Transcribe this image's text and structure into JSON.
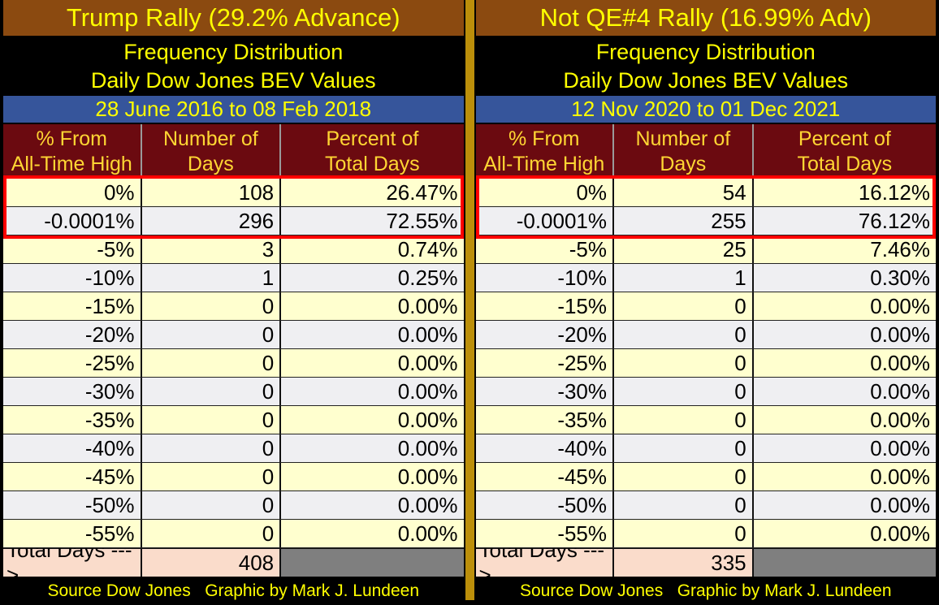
{
  "colors": {
    "title_bg": "#8B4A10",
    "band_bg": "#000000",
    "date_bg": "#36559B",
    "header_bg": "#6B0A10",
    "header_text": "#FFD633",
    "accent_yellow": "#FFFF00",
    "row_cream": "#FFFFCF",
    "row_gray": "#EFEFF2",
    "total_bg": "#FADCCB",
    "blank_cell": "#7F7F7F",
    "highlight_border": "#FF0000",
    "divider_gold": "#BC8F0A"
  },
  "panels": [
    {
      "title": "Trump Rally (29.2% Advance)",
      "subtitle_line1": "Frequency Distribution",
      "subtitle_line2": "Daily Dow Jones BEV Values",
      "date_range": "28 June 2016 to 08 Feb 2018",
      "columns": [
        {
          "line1": "% From",
          "line2": "All-Time High"
        },
        {
          "line1": "Number of",
          "line2": "Days"
        },
        {
          "line1": "Percent of",
          "line2": "Total Days"
        }
      ],
      "rows": [
        [
          "0%",
          "108",
          "26.47%"
        ],
        [
          "-0.0001%",
          "296",
          "72.55%"
        ],
        [
          "-5%",
          "3",
          "0.74%"
        ],
        [
          "-10%",
          "1",
          "0.25%"
        ],
        [
          "-15%",
          "0",
          "0.00%"
        ],
        [
          "-20%",
          "0",
          "0.00%"
        ],
        [
          "-25%",
          "0",
          "0.00%"
        ],
        [
          "-30%",
          "0",
          "0.00%"
        ],
        [
          "-35%",
          "0",
          "0.00%"
        ],
        [
          "-40%",
          "0",
          "0.00%"
        ],
        [
          "-45%",
          "0",
          "0.00%"
        ],
        [
          "-50%",
          "0",
          "0.00%"
        ],
        [
          "-55%",
          "0",
          "0.00%"
        ]
      ],
      "total_label": "Total Days --->",
      "total_value": "408",
      "source": "Source Dow Jones   Graphic by Mark J. Lundeen"
    },
    {
      "title": "Not QE#4 Rally (16.99% Adv)",
      "subtitle_line1": "Frequency Distribution",
      "subtitle_line2": "Daily Dow Jones BEV Values",
      "date_range": "12 Nov 2020 to 01 Dec 2021",
      "columns": [
        {
          "line1": "% From",
          "line2": "All-Time High"
        },
        {
          "line1": "Number of",
          "line2": "Days"
        },
        {
          "line1": "Percent of",
          "line2": "Total Days"
        }
      ],
      "rows": [
        [
          "0%",
          "54",
          "16.12%"
        ],
        [
          "-0.0001%",
          "255",
          "76.12%"
        ],
        [
          "-5%",
          "25",
          "7.46%"
        ],
        [
          "-10%",
          "1",
          "0.30%"
        ],
        [
          "-15%",
          "0",
          "0.00%"
        ],
        [
          "-20%",
          "0",
          "0.00%"
        ],
        [
          "-25%",
          "0",
          "0.00%"
        ],
        [
          "-30%",
          "0",
          "0.00%"
        ],
        [
          "-35%",
          "0",
          "0.00%"
        ],
        [
          "-40%",
          "0",
          "0.00%"
        ],
        [
          "-45%",
          "0",
          "0.00%"
        ],
        [
          "-50%",
          "0",
          "0.00%"
        ],
        [
          "-55%",
          "0",
          "0.00%"
        ]
      ],
      "total_label": "Total Days --->",
      "total_value": "335",
      "source": "Source Dow Jones   Graphic by Mark J. Lundeen"
    }
  ],
  "chart_data": [
    {
      "type": "table",
      "title": "Trump Rally (29.2% Advance)",
      "subtitle": [
        "Frequency Distribution",
        "Daily Dow Jones BEV Values"
      ],
      "date_range": "28 June 2016 to 08 Feb 2018",
      "columns": [
        "% From All-Time High",
        "Number of Days",
        "Percent of Total Days"
      ],
      "categories": [
        "0%",
        "-0.0001%",
        "-5%",
        "-10%",
        "-15%",
        "-20%",
        "-25%",
        "-30%",
        "-35%",
        "-40%",
        "-45%",
        "-50%",
        "-55%"
      ],
      "series": [
        {
          "name": "Number of Days",
          "values": [
            108,
            296,
            3,
            1,
            0,
            0,
            0,
            0,
            0,
            0,
            0,
            0,
            0
          ]
        },
        {
          "name": "Percent of Total Days",
          "values": [
            26.47,
            72.55,
            0.74,
            0.25,
            0,
            0,
            0,
            0,
            0,
            0,
            0,
            0,
            0
          ]
        }
      ],
      "total_days": 408,
      "highlighted_rows": [
        "0%",
        "-0.0001%"
      ],
      "source": "Source Dow Jones   Graphic by Mark J. Lundeen"
    },
    {
      "type": "table",
      "title": "Not QE#4 Rally (16.99% Adv)",
      "subtitle": [
        "Frequency Distribution",
        "Daily Dow Jones BEV Values"
      ],
      "date_range": "12 Nov 2020 to 01 Dec 2021",
      "columns": [
        "% From All-Time High",
        "Number of Days",
        "Percent of Total Days"
      ],
      "categories": [
        "0%",
        "-0.0001%",
        "-5%",
        "-10%",
        "-15%",
        "-20%",
        "-25%",
        "-30%",
        "-35%",
        "-40%",
        "-45%",
        "-50%",
        "-55%"
      ],
      "series": [
        {
          "name": "Number of Days",
          "values": [
            54,
            255,
            25,
            1,
            0,
            0,
            0,
            0,
            0,
            0,
            0,
            0,
            0
          ]
        },
        {
          "name": "Percent of Total Days",
          "values": [
            16.12,
            76.12,
            7.46,
            0.3,
            0,
            0,
            0,
            0,
            0,
            0,
            0,
            0,
            0
          ]
        }
      ],
      "total_days": 335,
      "highlighted_rows": [
        "0%",
        "-0.0001%"
      ],
      "source": "Source Dow Jones   Graphic by Mark J. Lundeen"
    }
  ]
}
